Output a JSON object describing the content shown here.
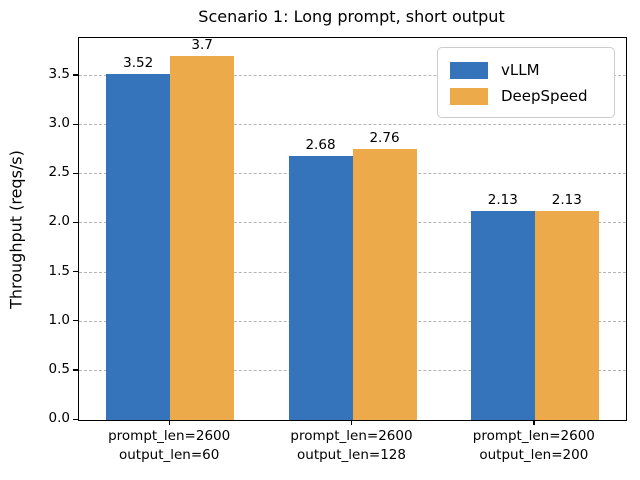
{
  "chart_data": {
    "type": "bar",
    "title": "Scenario 1: Long prompt, short output",
    "xlabel": "",
    "ylabel": "Throughput (reqs/s)",
    "categories": [
      [
        "prompt_len=2600",
        "output_len=60"
      ],
      [
        "prompt_len=2600",
        "output_len=128"
      ],
      [
        "prompt_len=2600",
        "output_len=200"
      ]
    ],
    "series": [
      {
        "name": "vLLM",
        "color": "#3574bb",
        "values": [
          3.52,
          2.68,
          2.13
        ],
        "value_labels": [
          "3.52",
          "2.68",
          "2.13"
        ]
      },
      {
        "name": "DeepSpeed",
        "color": "#edaa4b",
        "values": [
          3.7,
          2.76,
          2.13
        ],
        "value_labels": [
          "3.7",
          "2.76",
          "2.13"
        ]
      }
    ],
    "yticks": [
      0.0,
      0.5,
      1.0,
      1.5,
      2.0,
      2.5,
      3.0,
      3.5
    ],
    "ytick_labels": [
      "0.0",
      "0.5",
      "1.0",
      "1.5",
      "2.0",
      "2.5",
      "3.0",
      "3.5"
    ],
    "ylim": [
      0,
      3.885
    ],
    "grid": "horizontal-dashed",
    "legend_position": "upper right",
    "colors": {
      "vllm_blue": "#3574bb",
      "deepspeed_orange": "#edaa4b",
      "gridline_gray": "#b5b5b5",
      "axis_black": "#000000"
    }
  }
}
